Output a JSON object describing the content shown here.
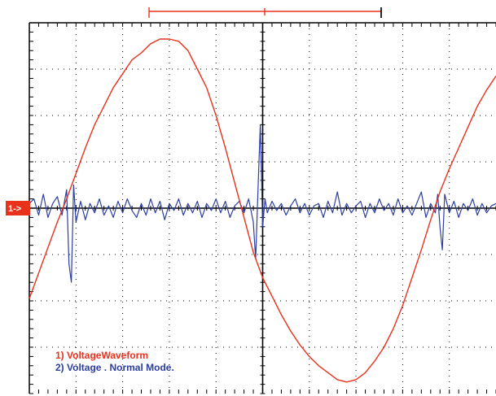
{
  "chart_data": {
    "type": "line",
    "title": "",
    "xlabel": "",
    "ylabel": "",
    "grid": true,
    "xlim": [
      0,
      10
    ],
    "ylim": [
      -4,
      4
    ],
    "trigger_marker": {
      "label": "1->",
      "y": 0
    },
    "series": [
      {
        "name": "1) VoltageWaveform",
        "color": "#e8321c",
        "x": [
          0,
          0.2,
          0.4,
          0.6,
          0.8,
          1.0,
          1.2,
          1.4,
          1.6,
          1.8,
          2.0,
          2.2,
          2.4,
          2.6,
          2.8,
          3.0,
          3.2,
          3.4,
          3.6,
          3.8,
          4.0,
          4.2,
          4.4,
          4.6,
          4.8,
          5.0,
          5.2,
          5.4,
          5.6,
          5.8,
          6.0,
          6.2,
          6.4,
          6.6,
          6.8,
          7.0,
          7.2,
          7.4,
          7.6,
          7.8,
          8.0,
          8.2,
          8.4,
          8.6,
          8.8,
          9.0,
          9.2,
          9.4,
          9.6,
          9.8,
          10.0
        ],
        "values": [
          -1.95,
          -1.4,
          -0.85,
          -0.3,
          0.2,
          0.75,
          1.3,
          1.8,
          2.2,
          2.6,
          2.9,
          3.2,
          3.35,
          3.55,
          3.65,
          3.65,
          3.6,
          3.4,
          3.0,
          2.6,
          2.0,
          1.3,
          0.55,
          -0.2,
          -0.95,
          -1.5,
          -1.9,
          -2.3,
          -2.65,
          -2.95,
          -3.2,
          -3.4,
          -3.55,
          -3.7,
          -3.75,
          -3.7,
          -3.55,
          -3.3,
          -3.0,
          -2.6,
          -2.1,
          -1.5,
          -0.9,
          -0.25,
          0.35,
          0.85,
          1.3,
          1.75,
          2.2,
          2.55,
          2.85
        ]
      },
      {
        "name": "2) Voltage Normal Mode",
        "color": "#2c3ea0",
        "x": [
          0,
          0.1,
          0.2,
          0.3,
          0.4,
          0.5,
          0.6,
          0.7,
          0.8,
          0.85,
          0.9,
          0.95,
          1.0,
          1.1,
          1.2,
          1.3,
          1.4,
          1.5,
          1.6,
          1.7,
          1.8,
          1.9,
          2.0,
          2.1,
          2.2,
          2.3,
          2.4,
          2.5,
          2.6,
          2.7,
          2.8,
          2.9,
          3.0,
          3.1,
          3.2,
          3.3,
          3.4,
          3.5,
          3.6,
          3.7,
          3.8,
          3.9,
          4.0,
          4.1,
          4.2,
          4.3,
          4.4,
          4.5,
          4.6,
          4.7,
          4.8,
          4.85,
          4.9,
          4.95,
          5.0,
          5.05,
          5.1,
          5.2,
          5.3,
          5.4,
          5.5,
          5.6,
          5.7,
          5.8,
          5.9,
          6.0,
          6.1,
          6.2,
          6.3,
          6.4,
          6.5,
          6.6,
          6.7,
          6.8,
          6.9,
          7.0,
          7.1,
          7.2,
          7.3,
          7.4,
          7.5,
          7.6,
          7.7,
          7.8,
          7.9,
          8.0,
          8.1,
          8.2,
          8.3,
          8.4,
          8.5,
          8.6,
          8.7,
          8.75,
          8.8,
          8.85,
          8.9,
          9.0,
          9.1,
          9.2,
          9.3,
          9.4,
          9.5,
          9.6,
          9.7,
          9.8,
          9.9,
          10.0
        ],
        "values": [
          0.1,
          0.2,
          -0.15,
          0.3,
          -0.2,
          0.1,
          0.25,
          -0.15,
          0.4,
          -1.2,
          -1.6,
          0.5,
          -0.3,
          0.15,
          -0.25,
          0.1,
          -0.1,
          0.2,
          -0.15,
          0.05,
          -0.2,
          0.15,
          -0.1,
          0.2,
          -0.05,
          -0.2,
          0.1,
          -0.15,
          0.2,
          -0.1,
          0.15,
          -0.25,
          0.1,
          -0.05,
          0.2,
          -0.15,
          0.1,
          -0.1,
          0.15,
          -0.2,
          0.1,
          -0.05,
          0.2,
          -0.1,
          0.15,
          -0.2,
          0.05,
          0.15,
          -0.1,
          0.2,
          -0.3,
          -1.1,
          0.4,
          1.8,
          -0.4,
          0.2,
          -0.1,
          0.15,
          -0.05,
          0.1,
          -0.15,
          0.05,
          0.2,
          -0.1,
          0.1,
          -0.15,
          0.05,
          0.1,
          -0.2,
          0.15,
          -0.1,
          0.35,
          -0.15,
          0.1,
          -0.1,
          0.05,
          0.15,
          -0.2,
          0.1,
          -0.1,
          0.2,
          -0.05,
          0.1,
          -0.15,
          0.2,
          -0.1,
          0.05,
          -0.15,
          0.1,
          0.35,
          -0.2,
          0.1,
          -0.1,
          0.3,
          -0.4,
          -0.9,
          0.3,
          -0.1,
          0.15,
          -0.2,
          0.1,
          -0.05,
          0.2,
          -0.15,
          0.1,
          -0.1,
          0.05,
          0.1
        ]
      }
    ],
    "legend": {
      "placement": "bottom-left",
      "entries": [
        {
          "text": "1) VoltageWaveform",
          "color": "#e8321c"
        },
        {
          "text": "2) Voltage . Normal Mode.",
          "color": "#2c3ea0"
        }
      ]
    },
    "cursor_bar_color": "#e8321c"
  }
}
